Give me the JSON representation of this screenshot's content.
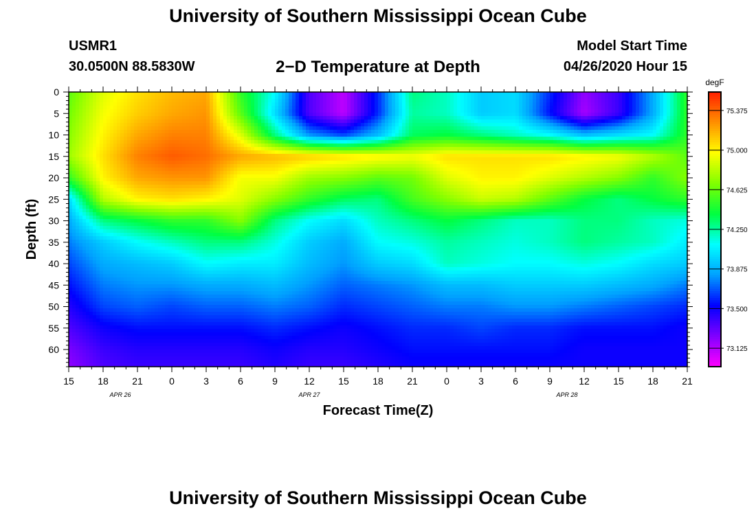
{
  "header": {
    "title_top": "University of Southern Mississippi Ocean Cube",
    "title_bottom": "University of Southern Mississippi Ocean Cube",
    "station_id": "USMR1",
    "station_coords": "30.0500N 88.5830W",
    "plot_title": "2−D Temperature at Depth",
    "model_start_label": "Model Start Time",
    "model_start_value": "04/26/2020 Hour 15"
  },
  "colors": {
    "colormap": [
      "#ff00ff",
      "#8000ff",
      "#0000ff",
      "#00a0ff",
      "#00ffff",
      "#00ff40",
      "#80ff00",
      "#ffff00",
      "#ff9000",
      "#ff2000"
    ]
  },
  "chart_data": {
    "type": "heatmap",
    "title": "2−D Temperature at Depth",
    "xlabel": "Forecast Time(Z)",
    "ylabel": "Depth (ft)",
    "x_range": [
      0,
      54
    ],
    "ylim": [
      0,
      64
    ],
    "x_ticks": [
      0,
      3,
      6,
      9,
      12,
      15,
      18,
      21,
      24,
      27,
      30,
      33,
      36,
      39,
      42,
      45,
      48,
      51,
      54
    ],
    "x_tick_labels": [
      "15",
      "18",
      "21",
      "0",
      "3",
      "6",
      "9",
      "12",
      "15",
      "18",
      "21",
      "0",
      "3",
      "6",
      "9",
      "12",
      "15",
      "18",
      "21"
    ],
    "date_labels": [
      {
        "at": 4.5,
        "text": "APR 26"
      },
      {
        "at": 21,
        "text": "APR 27"
      },
      {
        "at": 43.5,
        "text": "APR 28"
      }
    ],
    "y_ticks": [
      0,
      5,
      10,
      15,
      20,
      25,
      30,
      35,
      40,
      45,
      50,
      55,
      60
    ],
    "y_tick_labels": [
      "0",
      "5",
      "10",
      "15",
      "20",
      "25",
      "30",
      "35",
      "40",
      "45",
      "50",
      "55",
      "60"
    ],
    "colorbar": {
      "unit": "degF",
      "min": 72.95,
      "max": 75.55,
      "ticks": [
        73.125,
        73.5,
        73.875,
        74.25,
        74.625,
        75.0,
        75.375
      ],
      "tick_labels": [
        "73.125",
        "73.500",
        "73.875",
        "74.250",
        "74.625",
        "75.000",
        "75.375"
      ]
    },
    "depths": [
      0,
      5,
      10,
      15,
      20,
      25,
      30,
      35,
      40,
      45,
      50,
      55,
      60,
      64
    ],
    "times": [
      0,
      3,
      6,
      9,
      12,
      15,
      18,
      21,
      24,
      27,
      30,
      33,
      36,
      39,
      42,
      45,
      48,
      51,
      54
    ],
    "values": [
      [
        74.6,
        74.9,
        75.05,
        75.15,
        75.2,
        74.5,
        74.1,
        73.35,
        73.1,
        73.6,
        74.3,
        74.2,
        73.95,
        74.0,
        73.6,
        73.2,
        73.4,
        73.85,
        74.5
      ],
      [
        74.65,
        74.95,
        75.1,
        75.2,
        75.25,
        74.6,
        74.0,
        73.35,
        73.1,
        73.6,
        74.25,
        74.2,
        73.95,
        74.0,
        73.55,
        73.15,
        73.4,
        73.85,
        74.5
      ],
      [
        74.7,
        75.0,
        75.2,
        75.3,
        75.3,
        74.9,
        74.3,
        73.8,
        73.65,
        73.9,
        74.35,
        74.4,
        74.3,
        74.2,
        74.1,
        73.9,
        74.0,
        74.1,
        74.5
      ],
      [
        74.75,
        75.05,
        75.3,
        75.4,
        75.35,
        75.2,
        75.15,
        75.1,
        75.05,
        75.0,
        74.95,
        75.05,
        75.05,
        75.05,
        75.05,
        75.0,
        74.95,
        74.8,
        74.6
      ],
      [
        74.5,
        75.0,
        75.2,
        75.25,
        75.25,
        74.95,
        74.95,
        74.75,
        74.7,
        74.6,
        74.65,
        74.9,
        75.0,
        75.0,
        74.9,
        74.8,
        74.7,
        74.5,
        74.7
      ],
      [
        74.0,
        74.8,
        75.0,
        75.05,
        75.0,
        74.9,
        74.7,
        74.5,
        74.35,
        74.3,
        74.55,
        74.7,
        74.85,
        74.8,
        74.6,
        74.4,
        74.3,
        74.4,
        74.5
      ],
      [
        73.85,
        74.3,
        74.4,
        74.5,
        74.5,
        74.7,
        74.3,
        74.1,
        74.0,
        74.2,
        74.3,
        74.4,
        74.3,
        74.2,
        74.2,
        74.3,
        74.3,
        74.2,
        74.15
      ],
      [
        73.75,
        73.95,
        74.1,
        74.2,
        74.3,
        74.3,
        74.15,
        73.95,
        73.85,
        74.1,
        74.15,
        74.25,
        74.2,
        74.15,
        74.2,
        74.3,
        74.25,
        74.2,
        74.05
      ],
      [
        73.65,
        73.85,
        73.9,
        73.95,
        74.1,
        74.05,
        74.05,
        73.9,
        73.8,
        73.95,
        74.0,
        74.2,
        74.15,
        74.1,
        74.1,
        74.15,
        74.1,
        74.0,
        73.95
      ],
      [
        73.55,
        73.75,
        73.8,
        73.8,
        73.85,
        73.85,
        73.9,
        73.8,
        73.7,
        73.75,
        73.8,
        73.9,
        73.9,
        73.95,
        73.95,
        73.95,
        73.9,
        73.85,
        73.75
      ],
      [
        73.45,
        73.65,
        73.7,
        73.65,
        73.7,
        73.7,
        73.75,
        73.7,
        73.6,
        73.65,
        73.7,
        73.75,
        73.75,
        73.8,
        73.8,
        73.75,
        73.7,
        73.65,
        73.6
      ],
      [
        73.35,
        73.5,
        73.55,
        73.55,
        73.55,
        73.55,
        73.6,
        73.55,
        73.5,
        73.55,
        73.6,
        73.6,
        73.65,
        73.6,
        73.6,
        73.55,
        73.55,
        73.55,
        73.5
      ],
      [
        73.25,
        73.4,
        73.45,
        73.45,
        73.45,
        73.45,
        73.5,
        73.45,
        73.45,
        73.5,
        73.55,
        73.55,
        73.55,
        73.55,
        73.55,
        73.5,
        73.5,
        73.5,
        73.5
      ],
      [
        73.2,
        73.35,
        73.4,
        73.4,
        73.4,
        73.4,
        73.45,
        73.4,
        73.4,
        73.45,
        73.5,
        73.5,
        73.5,
        73.5,
        73.5,
        73.5,
        73.5,
        73.5,
        73.5
      ]
    ]
  }
}
